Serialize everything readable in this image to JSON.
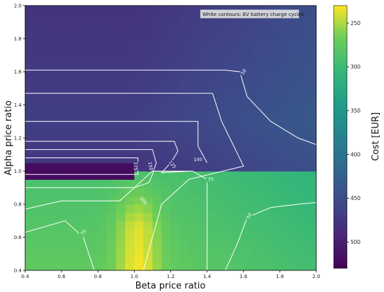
{
  "chart_data": {
    "type": "heatmap",
    "title": "",
    "xlabel": "Beta price ratio",
    "ylabel": "Alpha price ratio",
    "colorbar_label": "Cost [EUR]",
    "annotation": "White contours: EV battery charge cycles",
    "colormap": "viridis_r",
    "colorbar_range": [
      230,
      530
    ],
    "colorbar_ticks": [
      250,
      300,
      350,
      400,
      450,
      500
    ],
    "xlim": [
      0.4,
      2.0
    ],
    "ylim": [
      0.4,
      2.0
    ],
    "x_ticks": [
      "0.4",
      "0.6",
      "0.8",
      "1.0",
      "1.2",
      "1.4",
      "1.6",
      "1.8",
      "2.0"
    ],
    "y_ticks": [
      "0.4",
      "0.6",
      "0.8",
      "1.0",
      "1.2",
      "1.4",
      "1.6",
      "1.8",
      "2.0"
    ],
    "grid": false,
    "contour_color": "#ffffff",
    "contours": [
      {
        "level": "50",
        "label_at": [
          1.6,
          1.6
        ],
        "label_rotation": -55,
        "points": [
          [
            0.4,
            1.61
          ],
          [
            1.5,
            1.61
          ],
          [
            1.58,
            1.6
          ],
          [
            1.62,
            1.45
          ],
          [
            1.75,
            1.3
          ],
          [
            1.9,
            1.2
          ],
          [
            2.0,
            1.16
          ]
        ]
      },
      {
        "level": "50",
        "label_at": [
          1.63,
          0.73
        ],
        "label_rotation": -60,
        "points": [
          [
            1.5,
            0.4
          ],
          [
            1.57,
            0.57
          ],
          [
            1.62,
            0.72
          ],
          [
            1.75,
            0.78
          ],
          [
            1.9,
            0.8
          ],
          [
            2.0,
            0.81
          ]
        ]
      },
      {
        "level": "75",
        "label_at": [
          1.42,
          0.95
        ],
        "label_rotation": -10,
        "points": [
          [
            0.4,
            1.47
          ],
          [
            1.43,
            1.47
          ],
          [
            1.48,
            1.3
          ],
          [
            1.6,
            1.03
          ],
          [
            1.3,
            0.95
          ],
          [
            1.25,
            0.9
          ],
          [
            1.15,
            0.8
          ],
          [
            1.1,
            0.6
          ],
          [
            1.05,
            0.4
          ]
        ]
      },
      {
        "level": "75",
        "label_at": [
          0.72,
          0.63
        ],
        "label_rotation": -50,
        "points": [
          [
            0.4,
            0.63
          ],
          [
            0.62,
            0.7
          ],
          [
            0.72,
            0.6
          ],
          [
            0.78,
            0.4
          ]
        ]
      },
      {
        "level": "100",
        "label_at": [
          1.35,
          1.07
        ],
        "label_rotation": 0,
        "points": [
          [
            0.4,
            1.3
          ],
          [
            1.35,
            1.3
          ],
          [
            1.35,
            1.15
          ],
          [
            1.4,
            1.05
          ]
        ]
      },
      {
        "level": "100",
        "label_at": [
          1.05,
          0.82
        ],
        "label_rotation": 55,
        "points": [
          [
            0.4,
            0.77
          ],
          [
            0.6,
            0.82
          ],
          [
            0.92,
            0.82
          ],
          [
            1.0,
            0.9
          ],
          [
            1.1,
            1.0
          ],
          [
            1.32,
            1.0
          ],
          [
            1.4,
            0.95
          ],
          [
            1.4,
            0.4
          ]
        ]
      },
      {
        "level": "125",
        "label_at": [
          1.21,
          1.04
        ],
        "label_rotation": 50,
        "points": [
          [
            0.4,
            1.18
          ],
          [
            1.22,
            1.18
          ],
          [
            1.24,
            1.12
          ],
          [
            1.2,
            1.05
          ],
          [
            1.15,
            0.99
          ],
          [
            1.3,
            1.0
          ]
        ]
      },
      {
        "level": "150",
        "label_at": [
          1.09,
          1.03
        ],
        "label_rotation": 80,
        "points": [
          [
            0.4,
            1.13
          ],
          [
            1.1,
            1.13
          ],
          [
            1.12,
            1.05
          ],
          [
            1.1,
            0.98
          ],
          [
            1.08,
            0.93
          ],
          [
            1.0,
            0.9
          ],
          [
            0.4,
            0.9
          ]
        ]
      },
      {
        "level": "175",
        "label_at": [
          1.01,
          1.03
        ],
        "label_rotation": 90,
        "points": [
          [
            0.4,
            1.08
          ],
          [
            1.02,
            1.08
          ],
          [
            1.02,
            0.98
          ],
          [
            0.4,
            0.98
          ]
        ]
      }
    ]
  }
}
